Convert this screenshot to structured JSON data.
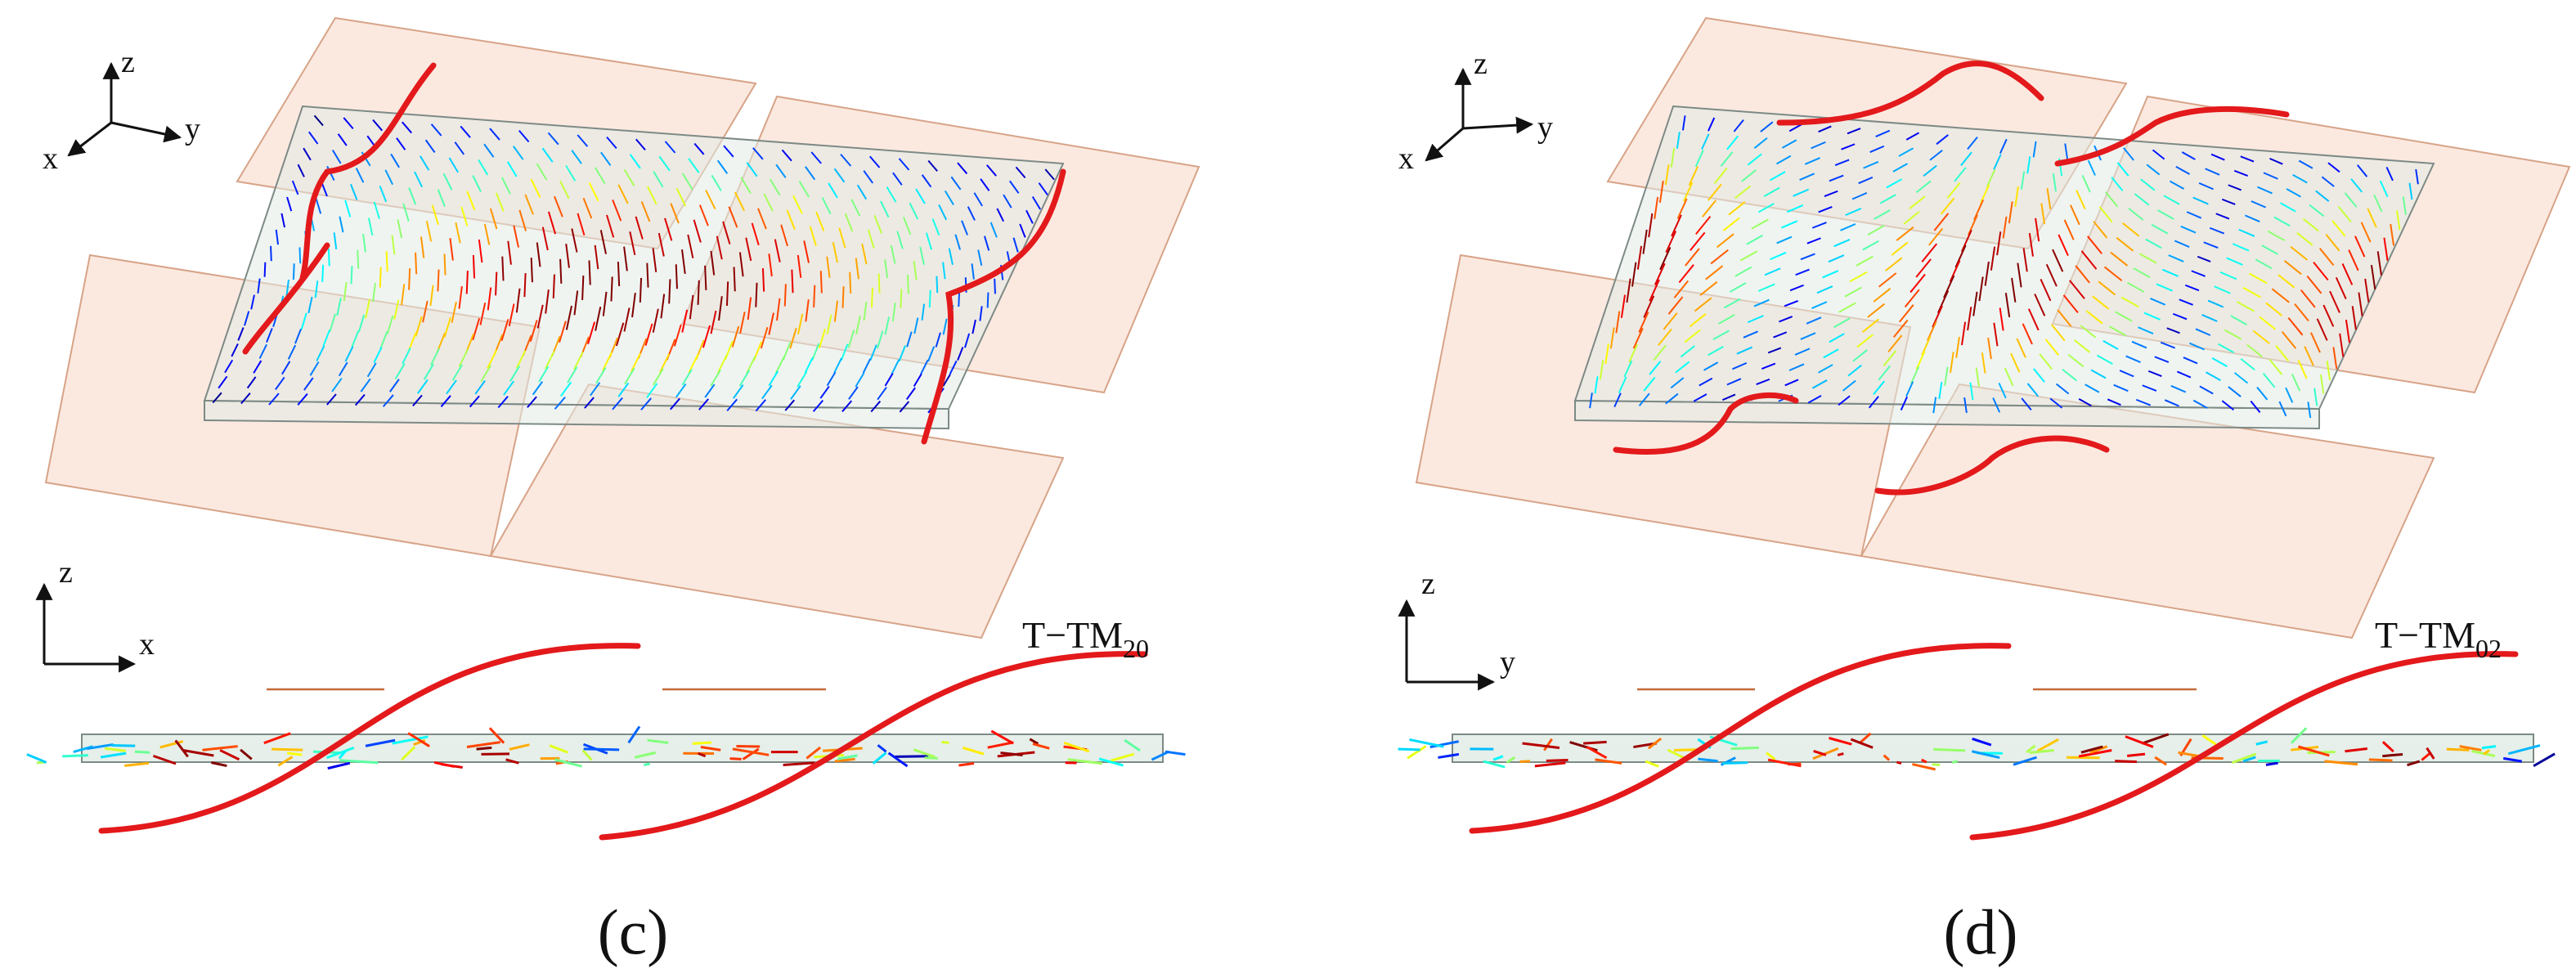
{
  "panels": [
    {
      "axes3d": {
        "z": "z",
        "y": "y",
        "x": "x"
      },
      "axes2d": {
        "vertical": "z",
        "horizontal": "x"
      },
      "mode": {
        "base": "T−TM",
        "subscript": "20"
      },
      "label": "(c)"
    },
    {
      "axes3d": {
        "z": "z",
        "y": "y",
        "x": "x"
      },
      "axes2d": {
        "vertical": "z",
        "horizontal": "y"
      },
      "mode": {
        "base": "T−TM",
        "subscript": "02"
      },
      "label": "(d)"
    }
  ]
}
